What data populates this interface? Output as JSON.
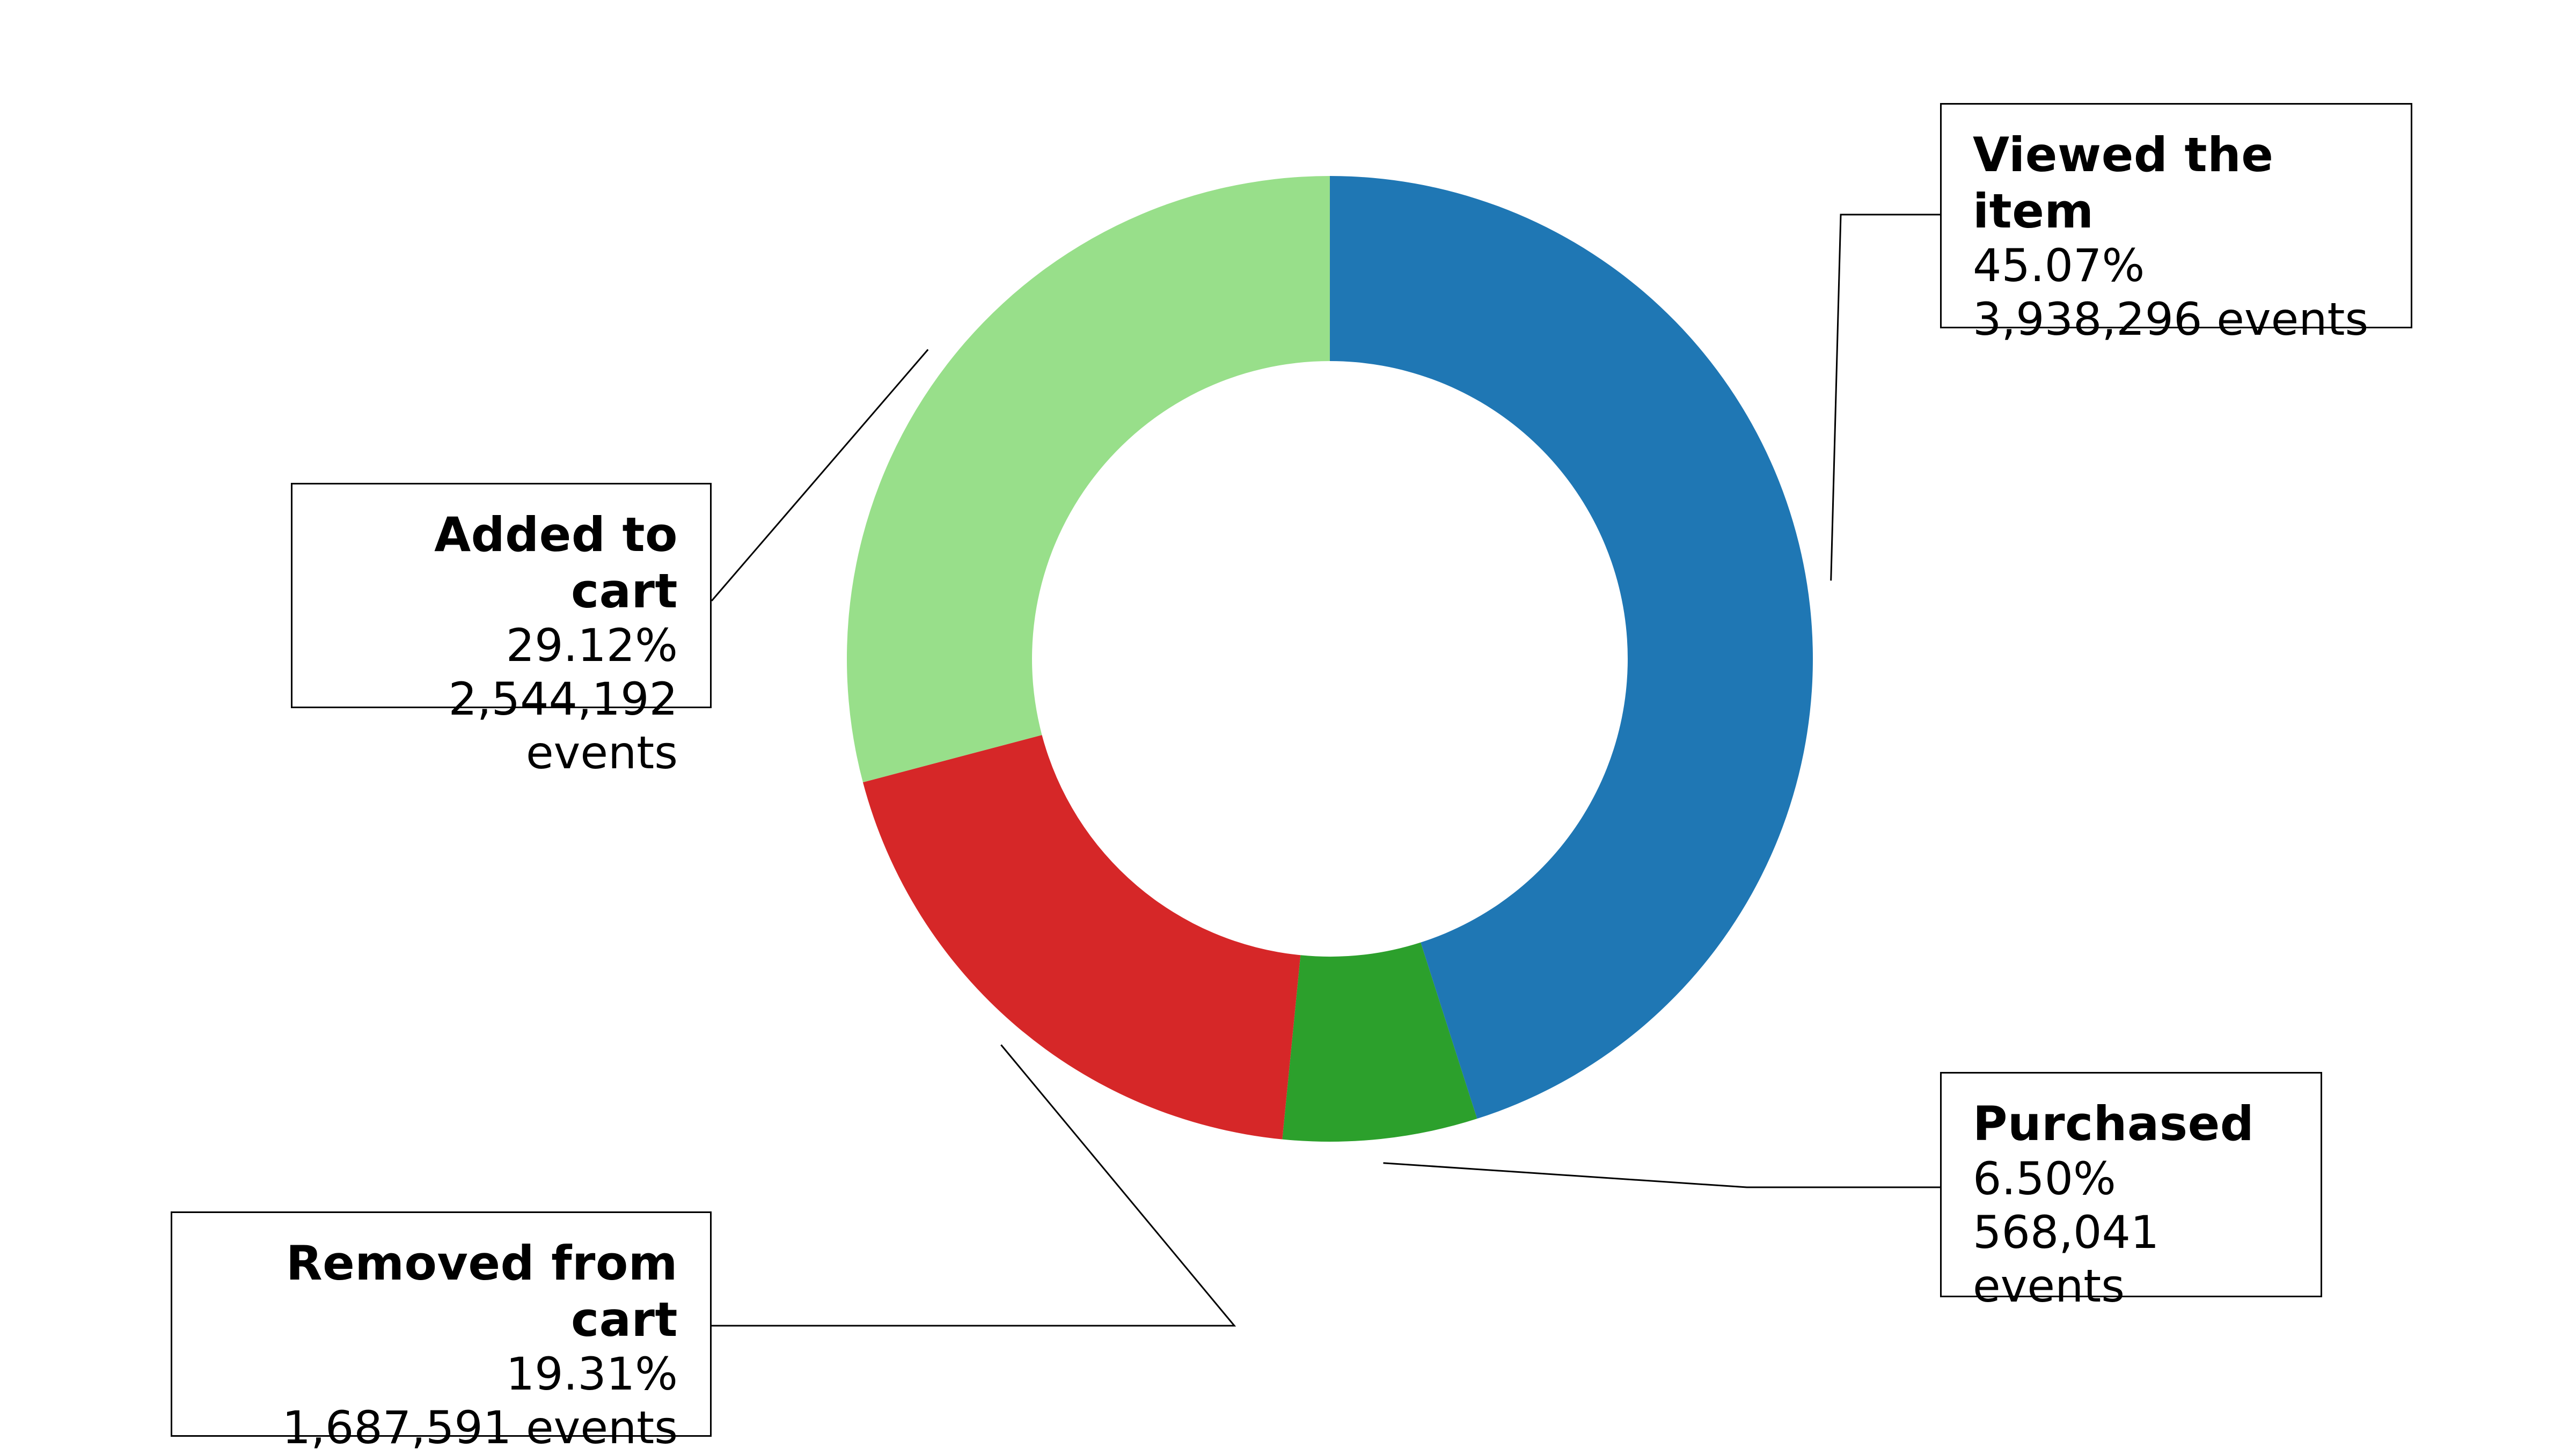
{
  "chart_data": {
    "type": "pie",
    "style": "donut",
    "start_angle_deg": 90,
    "direction": "clockwise",
    "slices": [
      {
        "key": "viewed",
        "label": "Viewed the item",
        "percent_label": "45.07%",
        "events_label": "3,938,296 events",
        "value": 3938296,
        "percent": 45.07,
        "color": "#1f77b4"
      },
      {
        "key": "purchased",
        "label": "Purchased",
        "percent_label": "6.50%",
        "events_label": "568,041 events",
        "value": 568041,
        "percent": 6.5,
        "color": "#2ca02c"
      },
      {
        "key": "removed",
        "label": "Removed from cart",
        "percent_label": "19.31%",
        "events_label": "1,687,591 events",
        "value": 1687591,
        "percent": 19.31,
        "color": "#d62728"
      },
      {
        "key": "added",
        "label": "Added to cart",
        "percent_label": "29.12%",
        "events_label": "2,544,192 events",
        "value": 2544192,
        "percent": 29.12,
        "color": "#98df8a"
      }
    ]
  }
}
